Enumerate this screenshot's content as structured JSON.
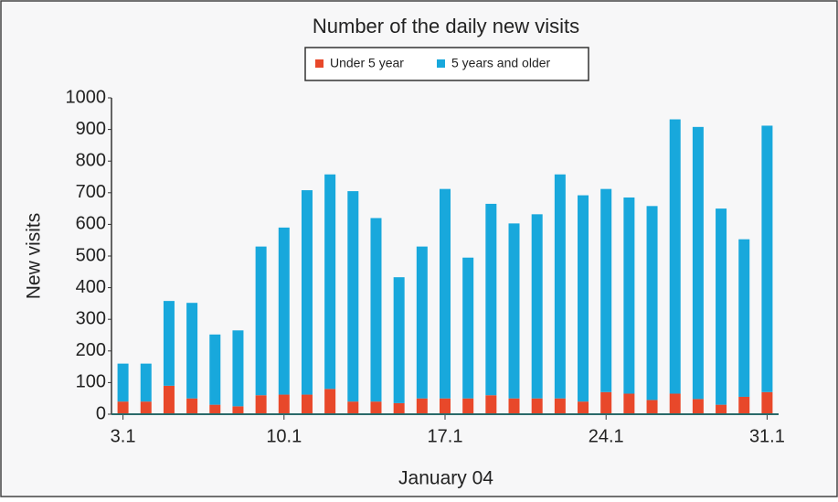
{
  "chart_data": {
    "type": "stacked-bar",
    "title": "Number of the daily new visits",
    "y_label": "New visits",
    "x_label": "January 04",
    "categories": [
      "3.1",
      null,
      null,
      null,
      null,
      null,
      null,
      "10.1",
      null,
      null,
      null,
      null,
      null,
      null,
      "17.1",
      null,
      null,
      null,
      null,
      null,
      null,
      "24.1",
      null,
      null,
      null,
      null,
      null,
      null,
      "31.1"
    ],
    "series": [
      {
        "name": "Under 5 year",
        "color": "#e8482a",
        "values": [
          40,
          40,
          90,
          50,
          30,
          25,
          60,
          62,
          62,
          80,
          40,
          40,
          35,
          50,
          50,
          50,
          60,
          50,
          50,
          50,
          40,
          70,
          65,
          45,
          65,
          48,
          30,
          55,
          70
        ]
      },
      {
        "name": "5 years and older",
        "color": "#18a8dc",
        "values": [
          120,
          120,
          268,
          302,
          222,
          240,
          470,
          528,
          646,
          678,
          665,
          580,
          398,
          480,
          662,
          445,
          605,
          553,
          582,
          708,
          652,
          642,
          620,
          613,
          867,
          860,
          620,
          498,
          842
        ]
      }
    ],
    "ylim": [
      0,
      1000
    ],
    "yticks": [
      0,
      100,
      200,
      300,
      400,
      500,
      600,
      700,
      800,
      900,
      1000
    ]
  }
}
